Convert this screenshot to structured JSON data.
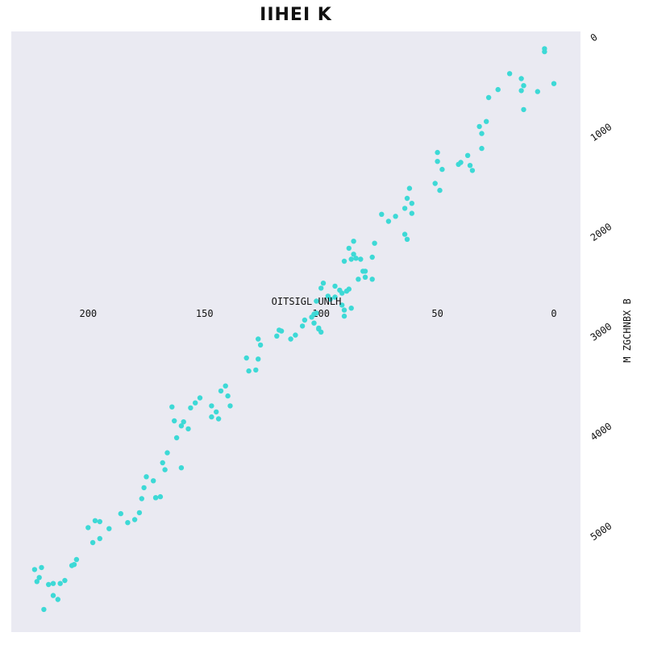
{
  "chart_data": {
    "type": "scatter",
    "title": "IIHEI K",
    "xlabel": "OITSIGL UNLH",
    "ylabel": "M ZGCHNBX B",
    "xlim": [
      0,
      233
    ],
    "ylim": [
      -100,
      5850
    ],
    "x_inverted": true,
    "y_inverted": true,
    "x_axis_position": "middle",
    "y_axis_position": "right",
    "x_ticks": [
      200,
      150,
      100,
      50,
      0
    ],
    "y_ticks": [
      0,
      1000,
      2000,
      3000,
      4000,
      5000
    ],
    "grid": false,
    "background": "#eaeaf2",
    "marker_color": "#3dd9d6",
    "series": [
      {
        "points": [
          [
            4,
            100
          ],
          [
            4,
            130
          ],
          [
            0,
            450
          ],
          [
            14,
            400
          ],
          [
            19,
            350
          ],
          [
            14,
            520
          ],
          [
            13,
            470
          ],
          [
            7,
            530
          ],
          [
            13,
            710
          ],
          [
            24,
            510
          ],
          [
            28,
            590
          ],
          [
            29,
            830
          ],
          [
            32,
            880
          ],
          [
            31,
            950
          ],
          [
            31,
            1100
          ],
          [
            37,
            1170
          ],
          [
            36,
            1270
          ],
          [
            35,
            1320
          ],
          [
            41,
            1260
          ],
          [
            40,
            1240
          ],
          [
            48,
            1310
          ],
          [
            50,
            1140
          ],
          [
            50,
            1230
          ],
          [
            51,
            1450
          ],
          [
            49,
            1520
          ],
          [
            62,
            1500
          ],
          [
            63,
            1600
          ],
          [
            61,
            1650
          ],
          [
            61,
            1750
          ],
          [
            64,
            1700
          ],
          [
            64,
            1960
          ],
          [
            63,
            2010
          ],
          [
            68,
            1780
          ],
          [
            71,
            1830
          ],
          [
            74,
            1760
          ],
          [
            77,
            2050
          ],
          [
            78,
            2190
          ],
          [
            81,
            2330
          ],
          [
            81,
            2390
          ],
          [
            78,
            2410
          ],
          [
            83,
            2210
          ],
          [
            82,
            2330
          ],
          [
            84,
            2410
          ],
          [
            86,
            2160
          ],
          [
            85,
            2200
          ],
          [
            86,
            2030
          ],
          [
            87,
            2210
          ],
          [
            88,
            2100
          ],
          [
            90,
            2230
          ],
          [
            88,
            2510
          ],
          [
            89,
            2530
          ],
          [
            92,
            2520
          ],
          [
            87,
            2700
          ],
          [
            90,
            2780
          ],
          [
            90,
            2720
          ],
          [
            91,
            2670
          ],
          [
            94,
            2590
          ],
          [
            96,
            2610
          ],
          [
            97,
            2580
          ],
          [
            94,
            2480
          ],
          [
            91,
            2550
          ],
          [
            99,
            2450
          ],
          [
            100,
            2500
          ],
          [
            102,
            2630
          ],
          [
            102,
            2750
          ],
          [
            103,
            2760
          ],
          [
            104,
            2790
          ],
          [
            103,
            2850
          ],
          [
            100,
            2940
          ],
          [
            101,
            2900
          ],
          [
            101,
            2910
          ],
          [
            107,
            2820
          ],
          [
            108,
            2880
          ],
          [
            111,
            2970
          ],
          [
            113,
            3010
          ],
          [
            117,
            2930
          ],
          [
            118,
            2920
          ],
          [
            119,
            2980
          ],
          [
            127,
            3010
          ],
          [
            126,
            3070
          ],
          [
            127,
            3210
          ],
          [
            128,
            3320
          ],
          [
            131,
            3330
          ],
          [
            132,
            3200
          ],
          [
            139,
            3680
          ],
          [
            140,
            3580
          ],
          [
            141,
            3480
          ],
          [
            143,
            3530
          ],
          [
            144,
            3810
          ],
          [
            147,
            3790
          ],
          [
            147,
            3680
          ],
          [
            145,
            3740
          ],
          [
            152,
            3600
          ],
          [
            154,
            3650
          ],
          [
            156,
            3700
          ],
          [
            157,
            3910
          ],
          [
            159,
            3840
          ],
          [
            160,
            3880
          ],
          [
            162,
            4000
          ],
          [
            163,
            3830
          ],
          [
            164,
            3690
          ],
          [
            160,
            4300
          ],
          [
            166,
            4150
          ],
          [
            168,
            4250
          ],
          [
            167,
            4320
          ],
          [
            169,
            4590
          ],
          [
            172,
            4430
          ],
          [
            175,
            4390
          ],
          [
            176,
            4500
          ],
          [
            177,
            4610
          ],
          [
            178,
            4750
          ],
          [
            180,
            4820
          ],
          [
            171,
            4600
          ],
          [
            171,
            4600
          ],
          [
            186,
            4760
          ],
          [
            191,
            4910
          ],
          [
            195,
            4840
          ],
          [
            197,
            4830
          ],
          [
            195,
            5010
          ],
          [
            198,
            5050
          ],
          [
            205,
            5220
          ],
          [
            206,
            5270
          ],
          [
            207,
            5280
          ],
          [
            210,
            5430
          ],
          [
            212,
            5460
          ],
          [
            213,
            5620
          ],
          [
            215,
            5460
          ],
          [
            217,
            5470
          ],
          [
            220,
            5300
          ],
          [
            223,
            5320
          ],
          [
            222,
            5440
          ],
          [
            215,
            5580
          ],
          [
            219,
            5720
          ],
          [
            221,
            5400
          ],
          [
            200,
            4900
          ],
          [
            183,
            4850
          ]
        ]
      }
    ]
  }
}
